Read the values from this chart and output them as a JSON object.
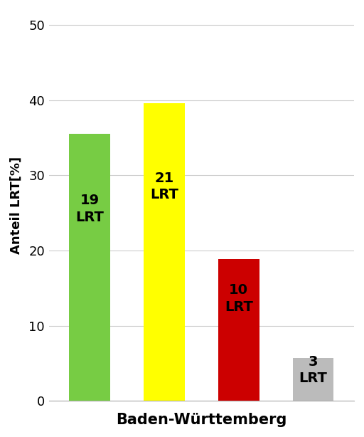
{
  "bars": [
    {
      "x": 0,
      "value": 35.5,
      "color": "#77cc44",
      "label": "19\nLRT"
    },
    {
      "x": 1,
      "value": 39.6,
      "color": "#ffff00",
      "label": "21\nLRT"
    },
    {
      "x": 2,
      "value": 18.9,
      "color": "#cc0000",
      "label": "10\nLRT"
    },
    {
      "x": 3,
      "value": 5.7,
      "color": "#bbbbbb",
      "label": "3\nLRT"
    }
  ],
  "xlabel": "Baden-Württemberg",
  "ylabel": "Anteil LRT[%]",
  "ylim": [
    0,
    52
  ],
  "yticks": [
    0,
    10,
    20,
    30,
    40,
    50
  ],
  "bar_width": 0.55,
  "background_color": "#ffffff",
  "grid_color": "#cccccc",
  "xlabel_fontsize": 15,
  "ylabel_fontsize": 13,
  "label_fontsize": 14,
  "tick_fontsize": 13
}
